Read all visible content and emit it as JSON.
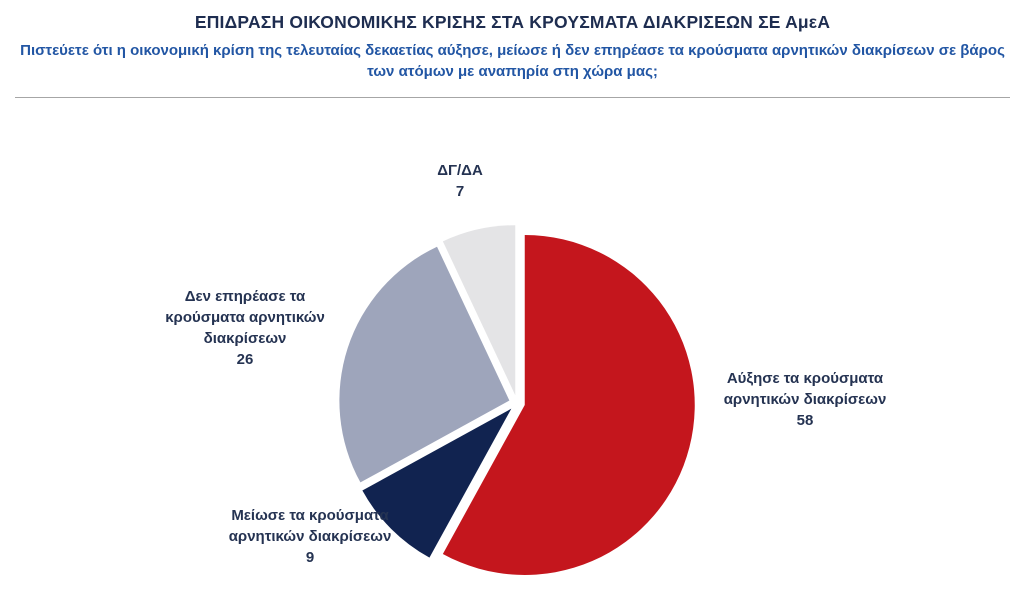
{
  "chart_data": {
    "type": "pie",
    "title": "ΕΠΙΔΡΑΣΗ ΟΙΚΟΝΟΜΙΚΗΣ ΚΡΙΣΗΣ ΣΤΑ ΚΡΟΥΣΜΑΤΑ ΔΙΑΚΡΙΣΕΩΝ ΣΕ ΑμεΑ",
    "subtitle": "Πιστεύετε ότι η οικονομική κρίση της τελευταίας δεκαετίας αύξησε, μείωσε ή δεν επηρέασε τα κρούσματα αρνητικών διακρίσεων σε βάρος των ατόμων με αναπηρία στη χώρα μας;",
    "total": 100,
    "legend_position": "labels-around-slices",
    "start_angle_deg": -90,
    "direction": "clockwise",
    "slices": [
      {
        "label": "Αύξησε τα κρούσματα αρνητικών διακρίσεων",
        "value": 58,
        "color": "#C4161D"
      },
      {
        "label": "Μείωσε τα κρούσματα αρνητικών διακρίσεων",
        "value": 9,
        "color": "#112350"
      },
      {
        "label": "Δεν επηρέασε τα κρούσματα αρνητικών διακρίσεων",
        "value": 26,
        "color": "#9EA5BB"
      },
      {
        "label": "ΔΓ/ΔΑ",
        "value": 7,
        "color": "#E4E4E6"
      }
    ],
    "colors": {
      "title_text": "#1E2D50",
      "subtitle_text": "#2256A4",
      "label_text": "#253352",
      "divider": "#A6A6A6"
    }
  }
}
